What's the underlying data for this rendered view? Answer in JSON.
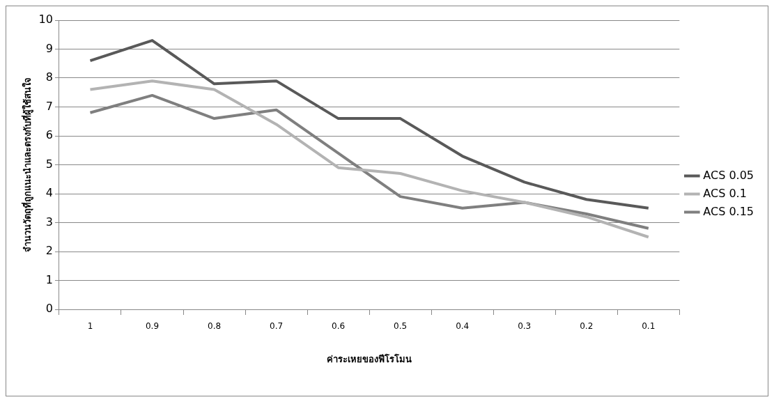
{
  "chart_data": {
    "type": "line",
    "xlabel": "ค่าระเหยของฟีโรโมน",
    "ylabel": "จำนวนวัตถุที่ถูกแนะนำและตรงกับที่ผู้ใช้สนใจ",
    "categories": [
      "1",
      "0.9",
      "0.8",
      "0.7",
      "0.6",
      "0.5",
      "0.4",
      "0.3",
      "0.2",
      "0.1"
    ],
    "series": [
      {
        "name": "ACS 0.05",
        "color": "#595959",
        "values": [
          8.6,
          9.3,
          7.8,
          7.9,
          6.6,
          6.6,
          5.3,
          4.4,
          3.8,
          3.5
        ]
      },
      {
        "name": "ACS 0.1",
        "color": "#b3b3b3",
        "values": [
          7.6,
          7.9,
          7.6,
          6.4,
          4.9,
          4.7,
          4.1,
          3.7,
          3.2,
          2.5
        ]
      },
      {
        "name": "ACS 0.15",
        "color": "#7f7f7f",
        "values": [
          6.8,
          7.4,
          6.6,
          6.9,
          5.4,
          3.9,
          3.5,
          3.7,
          3.3,
          2.8
        ]
      }
    ],
    "ylim": [
      0,
      10
    ],
    "yticks": [
      0,
      1,
      2,
      3,
      4,
      5,
      6,
      7,
      8,
      9,
      10
    ],
    "grid": "y",
    "legend": "right",
    "marker": "none",
    "line_style": "solid"
  }
}
